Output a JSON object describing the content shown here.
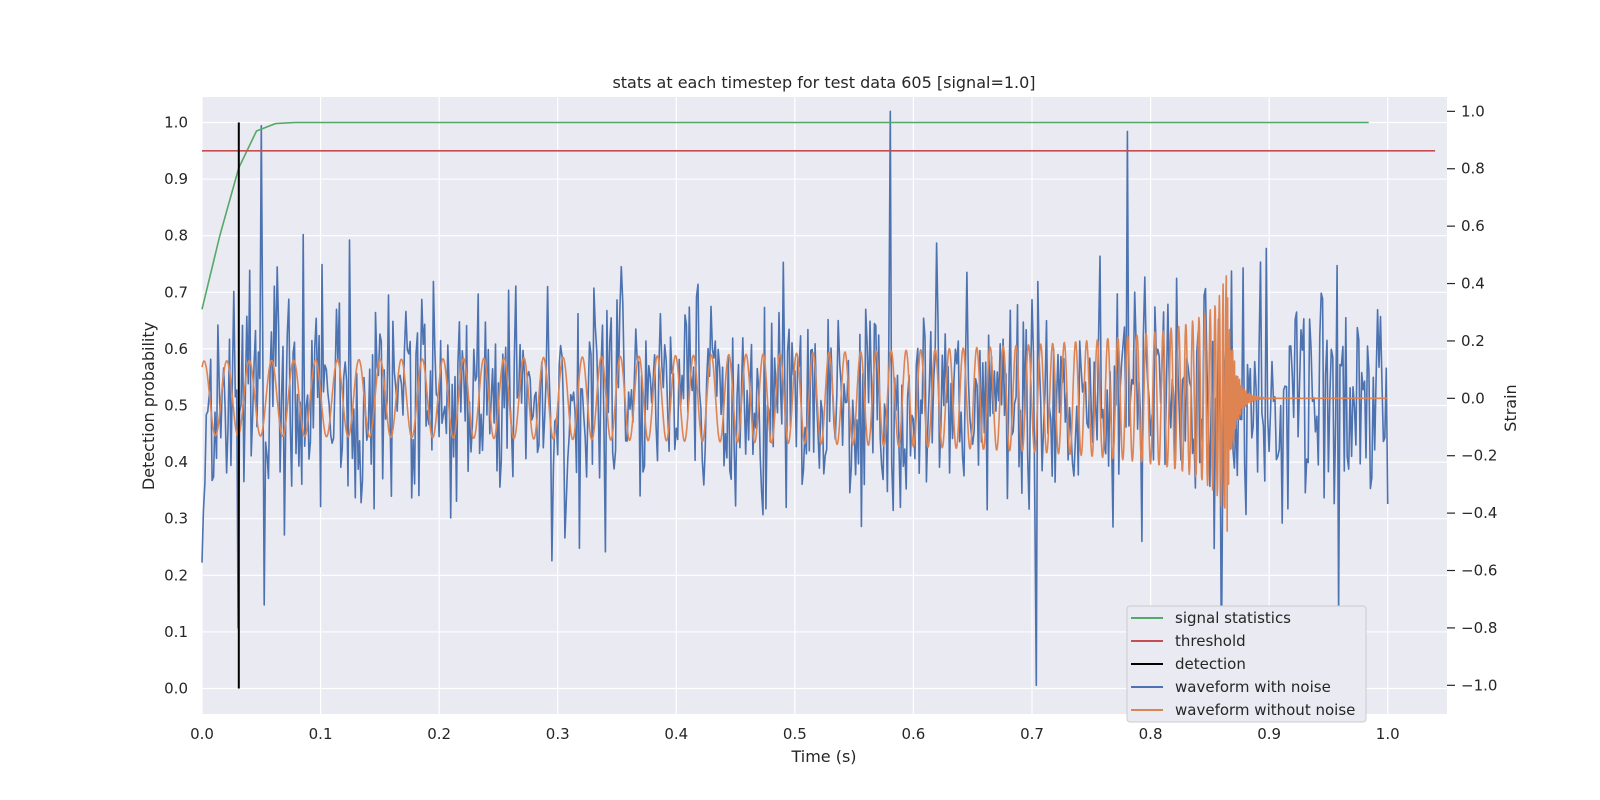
{
  "chart_data": {
    "type": "line",
    "title": "stats at each timestep for test data 605 [signal=1.0]",
    "xlabel": "Time (s)",
    "ylabel": "Detection probability",
    "y2label": "Strain",
    "xlim": [
      0.0,
      1.05
    ],
    "ylim": [
      -0.045,
      1.045
    ],
    "y2lim": [
      -1.1,
      1.05
    ],
    "xticks": [
      "0.0",
      "0.1",
      "0.2",
      "0.3",
      "0.4",
      "0.5",
      "0.6",
      "0.7",
      "0.8",
      "0.9",
      "1.0"
    ],
    "yticks": [
      "0.0",
      "0.1",
      "0.2",
      "0.3",
      "0.4",
      "0.5",
      "0.6",
      "0.7",
      "0.8",
      "0.9",
      "1.0"
    ],
    "y2ticks": [
      "−1.0",
      "−0.8",
      "−0.6",
      "−0.4",
      "−0.2",
      "0.0",
      "0.2",
      "0.4",
      "0.6",
      "0.8",
      "1.0"
    ],
    "grid": true,
    "background": "#eaeaf2",
    "legend_position": "lower-right",
    "series": [
      {
        "name": "signal statistics",
        "color": "#55a868",
        "axis": "left",
        "x": [
          0.0,
          0.015,
          0.031,
          0.046,
          0.062,
          0.078,
          0.1,
          0.2,
          0.3,
          0.4,
          0.5,
          0.6,
          0.7,
          0.8,
          0.9,
          0.984
        ],
        "y": [
          0.67,
          0.8,
          0.92,
          0.985,
          0.998,
          1.0,
          1.0,
          1.0,
          1.0,
          1.0,
          1.0,
          1.0,
          1.0,
          1.0,
          1.0,
          1.0
        ]
      },
      {
        "name": "threshold",
        "color": "#c44e52",
        "axis": "left",
        "x": [
          0.0,
          1.04
        ],
        "y": [
          0.95,
          0.95
        ]
      },
      {
        "name": "detection",
        "color": "#000000",
        "axis": "left",
        "x": [
          0.031,
          0.031
        ],
        "y": [
          0.0,
          1.0
        ]
      },
      {
        "name": "waveform with noise",
        "color": "#4c72b0",
        "axis": "right",
        "x_range": [
          0.0,
          1.0
        ],
        "noise_sigma": 0.2,
        "highlight_points": [
          [
            0.05,
            0.95
          ],
          [
            0.052,
            -0.72
          ],
          [
            0.58,
            1.0
          ],
          [
            0.704,
            -1.0
          ],
          [
            0.78,
            0.93
          ],
          [
            0.86,
            -0.9
          ],
          [
            0.958,
            -0.75
          ],
          [
            0.03,
            -0.8
          ]
        ]
      },
      {
        "name": "waveform without noise",
        "color": "#dd8452",
        "axis": "right",
        "x_range": [
          0.0,
          1.0
        ],
        "t_merger": 0.865,
        "amplitude_start": 0.13,
        "amplitude_peak": 0.55,
        "post_merger_value": 0.0
      }
    ]
  }
}
